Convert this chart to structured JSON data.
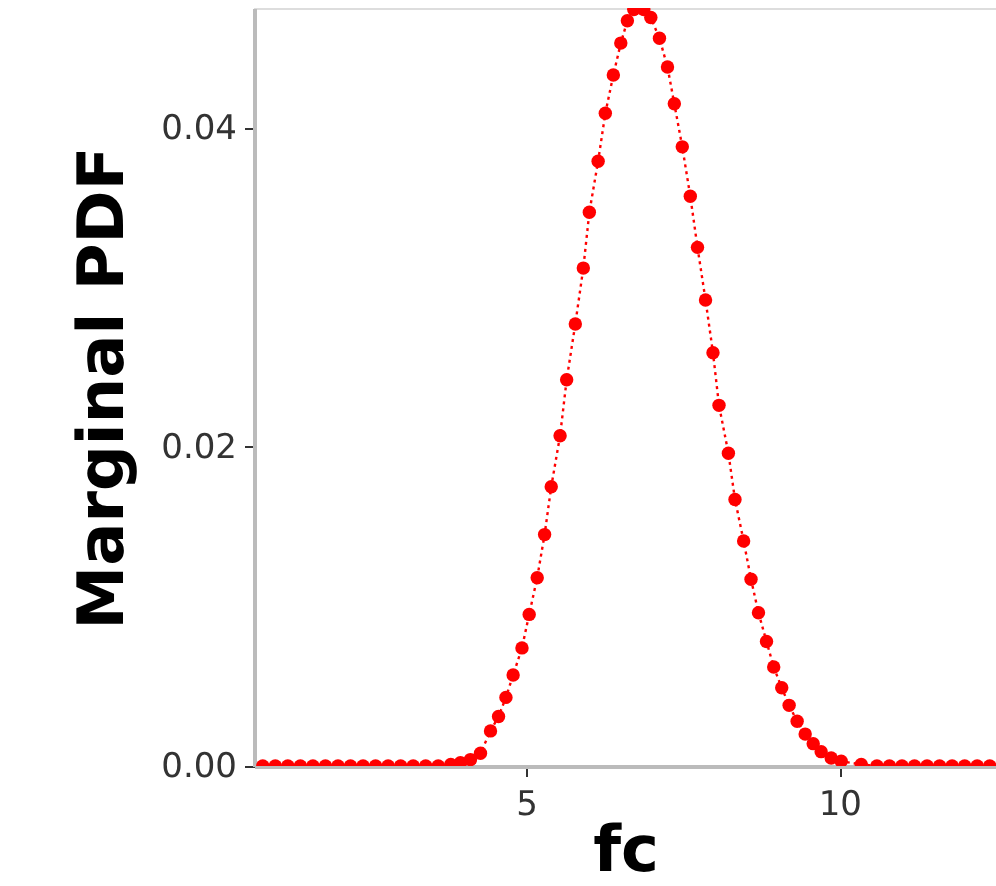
{
  "chart_data": {
    "type": "line",
    "xlabel": "fc",
    "ylabel": "Marginal PDF",
    "xlim": [
      0.66,
      12.5
    ],
    "ylim": [
      0,
      0.0475
    ],
    "xticks": [
      5,
      10
    ],
    "yticks": [
      {
        "value": 0,
        "label": "0.00"
      },
      {
        "value": 0.02,
        "label": "0.02"
      },
      {
        "value": 0.04,
        "label": "0.04"
      }
    ],
    "grid": false,
    "marker": "circle",
    "line_style": "dotted",
    "series": [
      {
        "color": "#ff0000",
        "x": [
          0.8,
          1.0,
          1.2,
          1.4,
          1.6,
          1.8,
          2.0,
          2.2,
          2.4,
          2.6,
          2.8,
          3.0,
          3.2,
          3.4,
          3.6,
          3.8,
          3.954,
          4.114,
          4.274,
          4.434,
          4.562,
          4.68,
          4.795,
          4.936,
          5.051,
          5.179,
          5.297,
          5.403,
          5.544,
          5.649,
          5.787,
          5.915,
          6.011,
          6.151,
          6.266,
          6.394,
          6.513,
          6.618,
          6.72,
          6.88,
          6.992,
          7.13,
          7.258,
          7.367,
          7.494,
          7.622,
          7.737,
          7.865,
          7.984,
          8.08,
          8.23,
          8.335,
          8.473,
          8.591,
          8.71,
          8.838,
          8.953,
          9.081,
          9.199,
          9.327,
          9.455,
          9.583,
          9.71,
          9.87,
          10.03,
          10.35,
          10.6,
          10.8,
          11.0,
          11.2,
          11.4,
          11.6,
          11.8,
          12.0,
          12.2,
          12.4
        ],
        "values": [
          0,
          0,
          0,
          0,
          0,
          0,
          0,
          0,
          0,
          0,
          0,
          0,
          0,
          0,
          0,
          0.0001,
          0.0002,
          0.0004,
          0.0008,
          0.0022,
          0.0031,
          0.0043,
          0.0057,
          0.0074,
          0.0095,
          0.0118,
          0.0145,
          0.0175,
          0.0207,
          0.0242,
          0.0277,
          0.0312,
          0.0347,
          0.0379,
          0.0409,
          0.0433,
          0.0453,
          0.0467,
          0.0474,
          0.0474,
          0.0469,
          0.0456,
          0.0438,
          0.0415,
          0.0388,
          0.0357,
          0.0325,
          0.0292,
          0.0259,
          0.0226,
          0.0196,
          0.0167,
          0.0141,
          0.0117,
          0.0096,
          0.0078,
          0.0062,
          0.0049,
          0.0038,
          0.0028,
          0.002,
          0.0014,
          0.0009,
          0.0005,
          0.0003,
          0.0001,
          0,
          0,
          0,
          0,
          0,
          0,
          0,
          0,
          0,
          0
        ]
      }
    ]
  }
}
